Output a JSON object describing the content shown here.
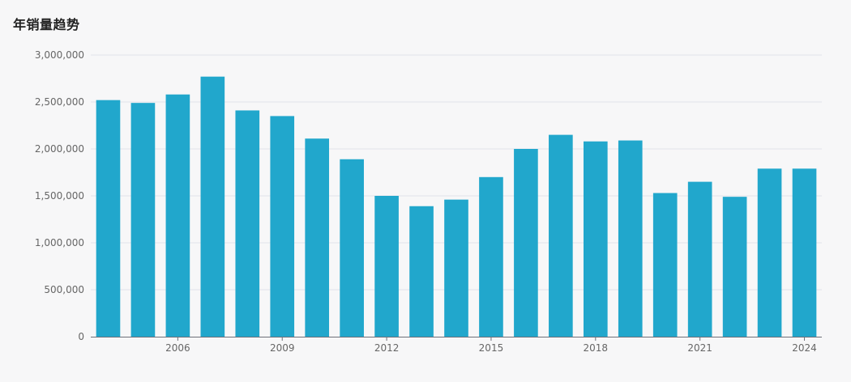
{
  "chart_title": "年销量趋势",
  "chart_data": {
    "type": "bar",
    "title": "年销量趋势",
    "xlabel": "",
    "ylabel": "",
    "categories": [
      "2004",
      "2005",
      "2006",
      "2007",
      "2008",
      "2009",
      "2010",
      "2011",
      "2012",
      "2013",
      "2014",
      "2015",
      "2016",
      "2017",
      "2018",
      "2019",
      "2020",
      "2021",
      "2022",
      "2023",
      "2024"
    ],
    "values": [
      2520000,
      2490000,
      2580000,
      2770000,
      2410000,
      2350000,
      2110000,
      1890000,
      1500000,
      1390000,
      1460000,
      1700000,
      2000000,
      2150000,
      2080000,
      2090000,
      1530000,
      1650000,
      1490000,
      1790000,
      1790000
    ],
    "ylim": [
      0,
      3000000
    ],
    "yticks": [
      0,
      500000,
      1000000,
      1500000,
      2000000,
      2500000,
      3000000
    ],
    "ytick_labels": [
      "0",
      "500,000",
      "1,000,000",
      "1,500,000",
      "2,000,000",
      "2,500,000",
      "3,000,000"
    ],
    "xtick_labels": [
      "2006",
      "2009",
      "2012",
      "2015",
      "2018",
      "2021",
      "2024"
    ],
    "grid": true,
    "bar_color": "#21a7cc"
  }
}
